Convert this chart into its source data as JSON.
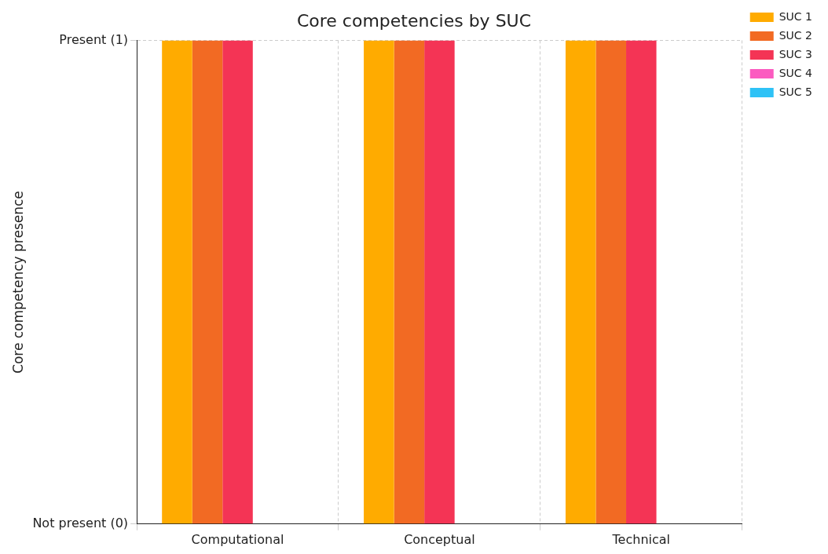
{
  "chart_data": {
    "type": "bar",
    "title": "Core competencies by SUC",
    "ylabel": "Core competency presence",
    "categories": [
      "Computational",
      "Conceptual",
      "Technical"
    ],
    "series": [
      {
        "name": "SUC 1",
        "color": "#ffab00",
        "values": [
          1,
          1,
          1
        ]
      },
      {
        "name": "SUC 2",
        "color": "#f26a23",
        "values": [
          1,
          1,
          1
        ]
      },
      {
        "name": "SUC 3",
        "color": "#f43455",
        "values": [
          1,
          1,
          1
        ]
      },
      {
        "name": "SUC 4",
        "color": "#fb5bc0",
        "values": [
          0,
          0,
          0
        ]
      },
      {
        "name": "SUC 5",
        "color": "#2ec2f6",
        "values": [
          0,
          0,
          0
        ]
      }
    ],
    "ylim": [
      0,
      1
    ],
    "yticks": [
      {
        "value": 0,
        "label": "Not present (0)"
      },
      {
        "value": 1,
        "label": "Present (1)"
      }
    ],
    "grid": true,
    "legend": "top right"
  }
}
